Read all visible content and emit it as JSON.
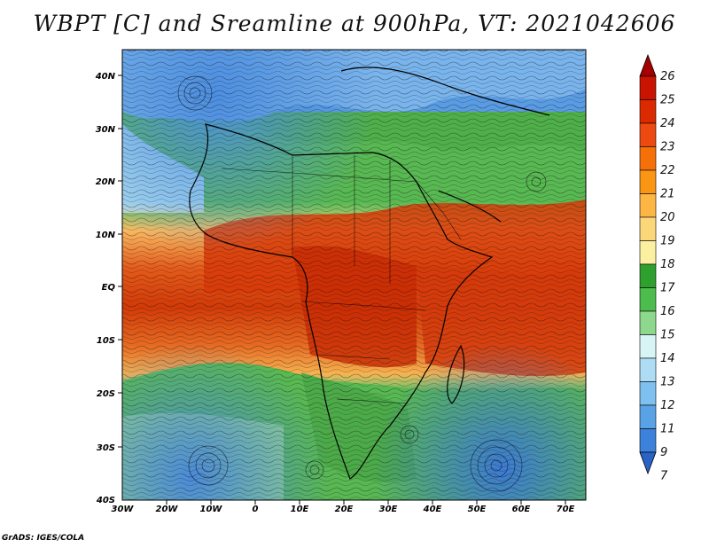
{
  "title": "WBPT [C] and Sreamline at 900hPa, VT: 2021042606",
  "credit": "GrADS: IGES/COLA",
  "map": {
    "lat_labels": [
      "40N",
      "30N",
      "20N",
      "10N",
      "EQ",
      "10S",
      "20S",
      "30S",
      "40S"
    ],
    "lon_labels": [
      "30W",
      "20W",
      "10W",
      "0",
      "10E",
      "20E",
      "30E",
      "40E",
      "50E",
      "60E",
      "70E"
    ]
  },
  "colorbar": {
    "levels": [
      "26",
      "25",
      "24",
      "23",
      "22",
      "21",
      "20",
      "19",
      "18",
      "17",
      "16",
      "15",
      "14",
      "13",
      "12",
      "11",
      "9",
      "7"
    ],
    "colors": [
      "#a50000",
      "#c81400",
      "#dc2a00",
      "#ec4a10",
      "#f6700a",
      "#fb9514",
      "#fdb644",
      "#fbd77a",
      "#fbf0a0",
      "#2ea02e",
      "#4cbc4c",
      "#8ed88e",
      "#d8f4f4",
      "#aedcf4",
      "#7ec0ee",
      "#5aa2e6",
      "#3c82da",
      "#2a62c8"
    ]
  }
}
